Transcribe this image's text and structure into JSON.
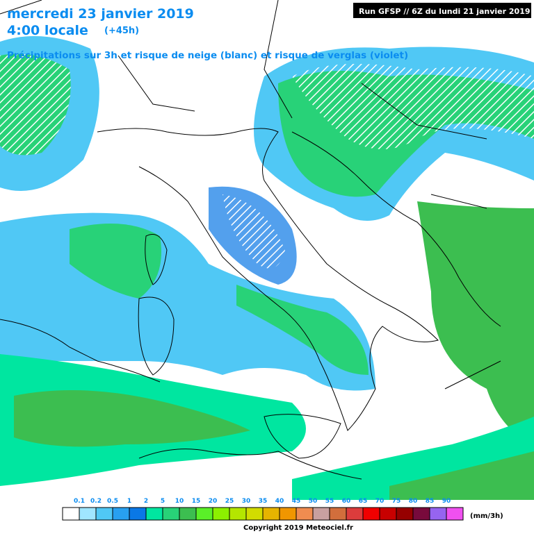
{
  "header": {
    "date": "mercredi 23 janvier 2019",
    "time": "4:00 locale",
    "lead": "(+45h)",
    "subtitle": "Précipitations sur 3h et risque de neige (blanc) et risque de verglas (violet)",
    "run": "Run GFSP // 6Z du lundi 21 janvier 2019"
  },
  "legend": {
    "labels": [
      0.1,
      0.2,
      0.5,
      1,
      2,
      5,
      10,
      15,
      20,
      25,
      30,
      35,
      40,
      45,
      50,
      55,
      60,
      65,
      70,
      75,
      80,
      85,
      90
    ],
    "colors": [
      "#ffffff",
      "#a0e6ff",
      "#50c8f5",
      "#28a0f0",
      "#0a78e6",
      "#00e6a0",
      "#28d278",
      "#3cbe50",
      "#5af028",
      "#8cf000",
      "#b4e600",
      "#d2dc00",
      "#e6b400",
      "#f09600",
      "#f08c50",
      "#c8a0a0",
      "#d26e3c",
      "#dc3c3c",
      "#f00000",
      "#c80000",
      "#960000",
      "#780a3c",
      "#9664f0",
      "#f050f0"
    ],
    "unit": "(mm/3h)"
  },
  "footer": {
    "copyright": "Copyright 2019 Meteociel.fr"
  }
}
